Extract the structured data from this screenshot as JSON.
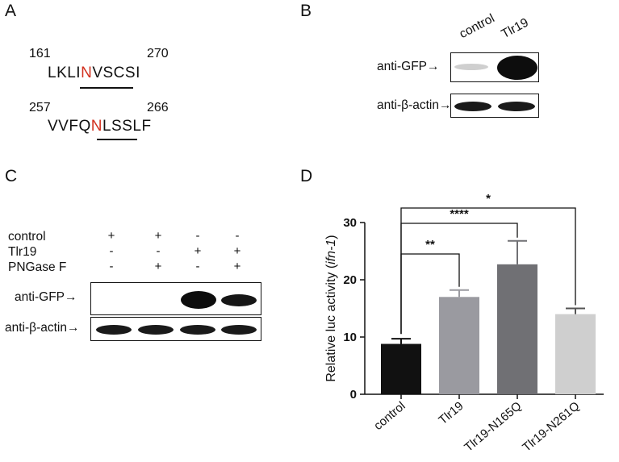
{
  "panelA": {
    "letter": "A",
    "seq1": {
      "start": "161",
      "end": "270",
      "pre": "LKLI",
      "hl": "N",
      "post": "VSCSI"
    },
    "seq2": {
      "start": "257",
      "end": "266",
      "pre": "VVFQ",
      "hl": "N",
      "post": "LSSLF"
    }
  },
  "panelB": {
    "letter": "B",
    "lanes": [
      "control",
      "Tlr19"
    ],
    "row1": "anti-GFP→",
    "row2": "anti-β-actin→"
  },
  "panelC": {
    "letter": "C",
    "rows": [
      {
        "label": "control",
        "signs": [
          "+",
          "+",
          "-",
          "-"
        ]
      },
      {
        "label": "Tlr19",
        "signs": [
          "-",
          "-",
          "+",
          "+"
        ]
      },
      {
        "label": "PNGase F",
        "signs": [
          "-",
          "+",
          "-",
          "+"
        ]
      }
    ],
    "row1": "anti-GFP→",
    "row2": "anti-β-actin→"
  },
  "panelD": {
    "letter": "D",
    "chart_data": {
      "type": "bar",
      "categories": [
        "control",
        "Tlr19",
        "Tlr19-N165Q",
        "Tlr19-N261Q"
      ],
      "values": [
        8.8,
        17.0,
        22.7,
        14.0
      ],
      "errors": [
        0.9,
        1.2,
        4.1,
        1.0
      ],
      "colors": [
        "#111111",
        "#9a9aa0",
        "#707074",
        "#cfcfcf"
      ],
      "ylabel_pre": "Relative luc activity (",
      "ylabel_italic": "ifn-1",
      "ylabel_post": ")",
      "ylim": [
        0,
        30
      ],
      "yticks": [
        "0",
        "10",
        "20",
        "30"
      ],
      "significance": [
        {
          "from": 0,
          "to": 1,
          "label": "**"
        },
        {
          "from": 0,
          "to": 2,
          "label": "****"
        },
        {
          "from": 0,
          "to": 3,
          "label": "*"
        }
      ]
    }
  }
}
